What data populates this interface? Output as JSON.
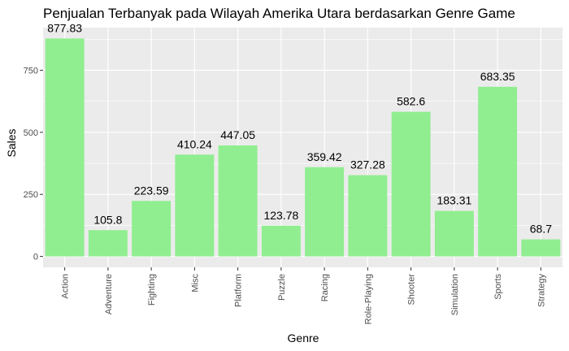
{
  "chart_data": {
    "type": "bar",
    "title": "Penjualan Terbanyak pada Wilayah Amerika Utara berdasarkan Genre Game",
    "xlabel": "Genre",
    "ylabel": "Sales",
    "categories": [
      "Action",
      "Adventure",
      "Fighting",
      "Misc",
      "Platform",
      "Puzzle",
      "Racing",
      "Role-Playing",
      "Shooter",
      "Simulation",
      "Sports",
      "Strategy"
    ],
    "values": [
      877.83,
      105.8,
      223.59,
      410.24,
      447.05,
      123.78,
      359.42,
      327.28,
      582.6,
      183.31,
      683.35,
      68.7
    ],
    "data_labels": [
      "877.83",
      "105.8",
      "223.59",
      "410.24",
      "447.05",
      "123.78",
      "359.42",
      "327.28",
      "582.6",
      "183.31",
      "683.35",
      "68.7"
    ],
    "yticks": [
      0,
      250,
      500,
      750
    ],
    "ytick_labels": [
      "0",
      "250",
      "500",
      "750"
    ],
    "ylim": [
      -43.9,
      921.7
    ],
    "grid": true,
    "bar_color": "#90EE90",
    "panel_color": "#EBEBEB",
    "grid_color": "#FFFFFF"
  }
}
